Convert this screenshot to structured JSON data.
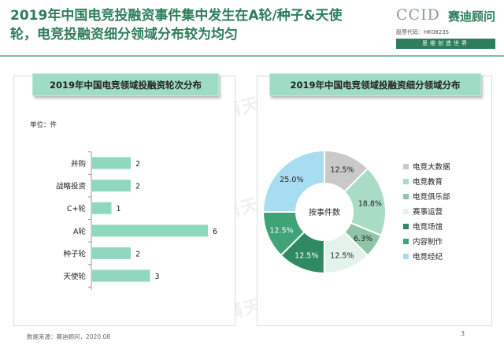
{
  "header": {
    "title_line1": "2019年中国电竞投融资事件集中发生在A轮/种子&天使",
    "title_line2": "轮，电竞投融资细分领域分布较为均匀"
  },
  "logo": {
    "mark": "CCID",
    "name": "赛迪顾问",
    "stock_code": "股票代码：HK08235",
    "slogan": "思维创造世界"
  },
  "left_panel": {
    "title": "2019年中国电竞领域投融资轮次分布",
    "unit": "单位：件"
  },
  "right_panel": {
    "title": "2019年中国电竞领域投融资细分领域分布",
    "center_label": "按事件数"
  },
  "footer": {
    "source": "数据来源：赛迪顾问，2020.08",
    "page": "3"
  },
  "watermark": "满天星",
  "chart_data": [
    {
      "type": "bar",
      "orientation": "horizontal",
      "title": "2019年中国电竞领域投融资轮次分布",
      "categories": [
        "并购",
        "战略投资",
        "C+轮",
        "A轮",
        "种子轮",
        "天使轮"
      ],
      "values": [
        2,
        2,
        1,
        6,
        2,
        3
      ],
      "unit": "单位：件",
      "bar_color": "#8fd8bd"
    },
    {
      "type": "pie",
      "subtype": "donut",
      "title": "2019年中国电竞领域投融资细分领域分布",
      "center_label": "按事件数",
      "legend_position": "right",
      "slices": [
        {
          "label": "电竞大数据",
          "value": 12.5,
          "display": "12.5%",
          "color": "#c9c9c9"
        },
        {
          "label": "电竞教育",
          "value": 18.8,
          "display": "18.8%",
          "color": "#a9dcc5"
        },
        {
          "label": "电竞俱乐部",
          "value": 6.3,
          "display": "6.3%",
          "color": "#8fc4a6"
        },
        {
          "label": "赛事运营",
          "value": 12.5,
          "display": "12.5%",
          "color": "#e3f3ea"
        },
        {
          "label": "电竞场馆",
          "value": 12.5,
          "display": "12.5%",
          "color": "#2f8a62"
        },
        {
          "label": "内容制作",
          "value": 12.5,
          "display": "12.5%",
          "color": "#3fa377"
        },
        {
          "label": "电竞经纪",
          "value": 25.0,
          "display": "25.0%",
          "color": "#a8dcf0"
        }
      ]
    }
  ]
}
